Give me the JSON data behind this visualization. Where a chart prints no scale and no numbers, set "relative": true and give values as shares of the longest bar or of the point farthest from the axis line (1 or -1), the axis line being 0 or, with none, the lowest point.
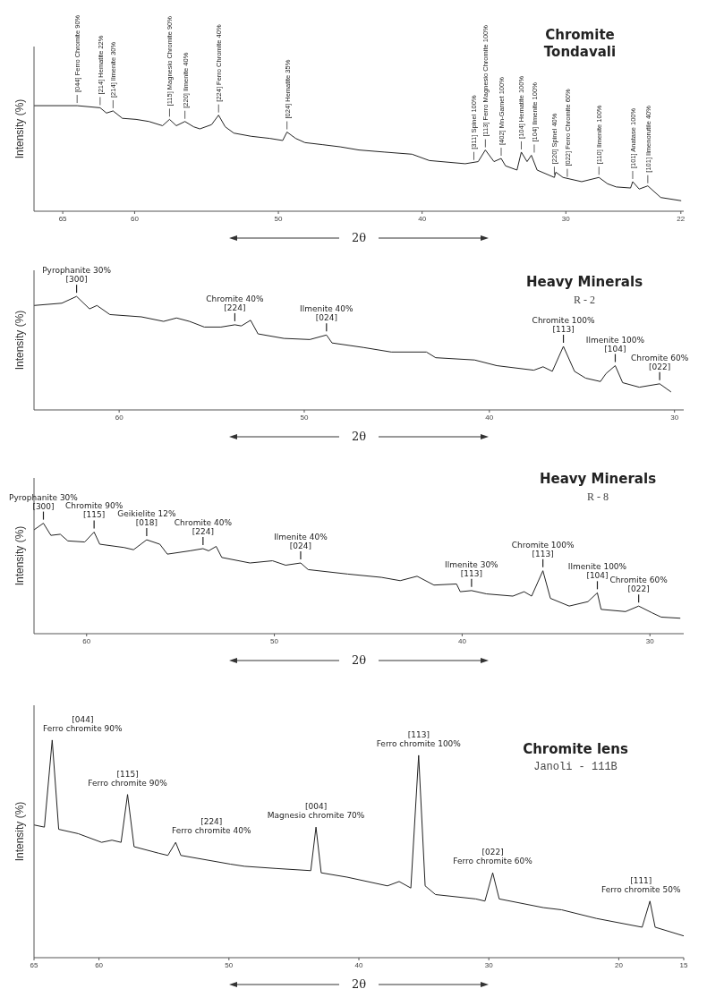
{
  "chart_data": [
    {
      "type": "line",
      "title": "Chromite Tondavali",
      "xlabel": "2θ",
      "ylabel": "Intensity (%)",
      "relative": true,
      "xlim": [
        67,
        21.8
      ],
      "xticks": [
        65,
        60,
        50,
        40,
        30,
        22
      ],
      "x": [
        67,
        64.0,
        62.4,
        61.96,
        61.5,
        60.85,
        59.9,
        59.0,
        58.06,
        57.57,
        57.1,
        56.5,
        55.9,
        55.46,
        54.65,
        54.16,
        53.7,
        53.1,
        51.9,
        50.6,
        49.7,
        49.4,
        48.8,
        48.15,
        46.9,
        45.7,
        44.4,
        42.6,
        40.7,
        39.5,
        37.0,
        36.1,
        35.6,
        35.0,
        34.5,
        34.2,
        33.4,
        33.1,
        32.7,
        32.4,
        32.0,
        30.8,
        30.7,
        30.2,
        28.9,
        27.7,
        27.1,
        26.5,
        25.5,
        25.35,
        24.9,
        24.3,
        23.4,
        22.0
      ],
      "series": [
        {
          "color": "#222222",
          "values": [
            1.0,
            1.0,
            0.98,
            0.93,
            0.95,
            0.88,
            0.87,
            0.85,
            0.81,
            0.87,
            0.81,
            0.85,
            0.8,
            0.78,
            0.82,
            0.91,
            0.8,
            0.74,
            0.71,
            0.69,
            0.67,
            0.75,
            0.69,
            0.65,
            0.63,
            0.61,
            0.58,
            0.56,
            0.54,
            0.48,
            0.45,
            0.47,
            0.58,
            0.47,
            0.5,
            0.43,
            0.39,
            0.56,
            0.47,
            0.53,
            0.39,
            0.32,
            0.37,
            0.32,
            0.28,
            0.32,
            0.26,
            0.23,
            0.22,
            0.28,
            0.21,
            0.24,
            0.13,
            0.1
          ]
        }
      ],
      "annotations": [
        {
          "text": "[044] Ferro Chromite 90%",
          "x": 64.0,
          "y": 1.0
        },
        {
          "text": "[214] Hematite 22%",
          "x": 62.4,
          "y": 0.98
        },
        {
          "text": "[214] Ilmenite 30%",
          "x": 61.5,
          "y": 0.95
        },
        {
          "text": "[115] Magnesio Chromite 90%",
          "x": 57.57,
          "y": 0.87
        },
        {
          "text": "[220] Ilmenite 40%",
          "x": 56.5,
          "y": 0.85
        },
        {
          "text": "[224] Ferro Chromite 40%",
          "x": 54.16,
          "y": 0.91
        },
        {
          "text": "[024] Hematite 35%",
          "x": 49.4,
          "y": 0.75
        },
        {
          "text": "[311] Spinel 100%",
          "x": 36.4,
          "y": 0.46
        },
        {
          "text": "[113] Ferro Magnesio Chromite 100%",
          "x": 35.6,
          "y": 0.58
        },
        {
          "text": "[402] Mn-Garnet 100%",
          "x": 34.5,
          "y": 0.5
        },
        {
          "text": "[104] Hematite 100%",
          "x": 33.1,
          "y": 0.56
        },
        {
          "text": "[104] Ilmenite 100%",
          "x": 32.2,
          "y": 0.53
        },
        {
          "text": "[220] Spinel 40%",
          "x": 30.8,
          "y": 0.32
        },
        {
          "text": "[022] Ferro Chromite 60%",
          "x": 29.9,
          "y": 0.3
        },
        {
          "text": "[110] Ilmenite 100%",
          "x": 27.7,
          "y": 0.32
        },
        {
          "text": "[101] Anatase 100%",
          "x": 25.35,
          "y": 0.28
        },
        {
          "text": "[101] Ilmenorutile 40%",
          "x": 24.3,
          "y": 0.24
        }
      ]
    },
    {
      "type": "line",
      "title": "Heavy Minerals",
      "subtitle": "R - 2",
      "xlabel": "2θ",
      "ylabel": "Intensity (%)",
      "relative": true,
      "xlim": [
        64.6,
        29.5
      ],
      "xticks": [
        60,
        50,
        40,
        30
      ],
      "x": [
        64.6,
        63.1,
        62.3,
        61.6,
        61.2,
        60.5,
        58.8,
        57.6,
        56.9,
        56.2,
        55.4,
        54.5,
        53.75,
        53.4,
        52.9,
        52.5,
        51.1,
        49.7,
        48.8,
        48.5,
        46.8,
        45.3,
        43.4,
        42.9,
        40.8,
        39.6,
        37.6,
        37.1,
        36.6,
        36.0,
        35.4,
        34.8,
        34.0,
        33.7,
        33.2,
        32.8,
        31.9,
        30.8,
        30.2
      ],
      "series": [
        {
          "color": "#222222",
          "values": [
            0.92,
            0.94,
            1.0,
            0.89,
            0.92,
            0.84,
            0.82,
            0.78,
            0.81,
            0.78,
            0.73,
            0.73,
            0.75,
            0.74,
            0.79,
            0.67,
            0.63,
            0.62,
            0.66,
            0.59,
            0.55,
            0.51,
            0.51,
            0.46,
            0.44,
            0.39,
            0.35,
            0.38,
            0.34,
            0.56,
            0.34,
            0.28,
            0.25,
            0.32,
            0.39,
            0.24,
            0.2,
            0.23,
            0.16
          ]
        }
      ],
      "annotations": [
        {
          "text": "Pyrophanite 30%\n[300]",
          "x": 62.3,
          "y": 1.0
        },
        {
          "text": "Chromite 40%\n[224]",
          "x": 53.75,
          "y": 0.75
        },
        {
          "text": "Ilmenite 40%\n[024]",
          "x": 48.8,
          "y": 0.66
        },
        {
          "text": "Chromite 100%\n[113]",
          "x": 36.0,
          "y": 0.56
        },
        {
          "text": "Ilmenite 100%\n[104]",
          "x": 33.2,
          "y": 0.39
        },
        {
          "text": "Chromite 60%\n[022]",
          "x": 30.8,
          "y": 0.23
        }
      ]
    },
    {
      "type": "line",
      "title": "Heavy Minerals",
      "subtitle": "R - 8",
      "xlabel": "2θ",
      "ylabel": "Intensity (%)",
      "relative": true,
      "xlim": [
        62.8,
        28.2
      ],
      "xticks": [
        60,
        50,
        40,
        30
      ],
      "x": [
        62.8,
        62.3,
        61.9,
        61.4,
        61.0,
        60.1,
        59.6,
        59.3,
        58.0,
        57.5,
        56.8,
        56.1,
        55.7,
        54.5,
        53.8,
        53.5,
        53.1,
        52.8,
        51.3,
        50.1,
        49.4,
        48.6,
        48.2,
        46.1,
        44.3,
        43.3,
        42.4,
        41.5,
        40.3,
        40.1,
        39.5,
        38.7,
        37.3,
        36.7,
        36.3,
        35.7,
        35.3,
        34.3,
        33.3,
        32.8,
        32.6,
        31.3,
        30.6,
        29.9,
        29.4,
        28.4
      ],
      "series": [
        {
          "color": "#222222",
          "values": [
            0.94,
            1.0,
            0.89,
            0.9,
            0.84,
            0.83,
            0.92,
            0.81,
            0.78,
            0.76,
            0.85,
            0.81,
            0.72,
            0.75,
            0.77,
            0.75,
            0.79,
            0.69,
            0.64,
            0.66,
            0.62,
            0.64,
            0.58,
            0.54,
            0.51,
            0.48,
            0.52,
            0.44,
            0.45,
            0.38,
            0.39,
            0.36,
            0.34,
            0.38,
            0.34,
            0.57,
            0.32,
            0.25,
            0.29,
            0.37,
            0.22,
            0.2,
            0.25,
            0.19,
            0.15,
            0.14
          ]
        }
      ],
      "annotations": [
        {
          "text": "Pyrophanite 30%\n[300]",
          "x": 62.3,
          "y": 1.0
        },
        {
          "text": "Chromite 90%\n[115]",
          "x": 59.6,
          "y": 0.92
        },
        {
          "text": "Geikielite 12%\n[018]",
          "x": 56.8,
          "y": 0.85
        },
        {
          "text": "Chromite 40%\n[224]",
          "x": 53.8,
          "y": 0.77
        },
        {
          "text": "Ilmenite 40%\n[024]",
          "x": 48.6,
          "y": 0.64
        },
        {
          "text": "Ilmenite 30%\n[113]",
          "x": 39.5,
          "y": 0.39
        },
        {
          "text": "Chromite 100%\n[113]",
          "x": 35.7,
          "y": 0.57
        },
        {
          "text": "Ilmenite 100%\n[104]",
          "x": 32.8,
          "y": 0.37
        },
        {
          "text": "Chromite 60%\n[022]",
          "x": 30.6,
          "y": 0.25
        }
      ]
    },
    {
      "type": "line",
      "title": "Chromite lens",
      "subtitle": "Janoli - 111B",
      "xlabel": "2θ",
      "ylabel": "Intensity (%)",
      "relative": true,
      "xlim": [
        65,
        15
      ],
      "xticks": [
        65,
        60,
        50,
        40,
        30,
        20,
        15
      ],
      "x": [
        65.0,
        64.2,
        63.6,
        63.1,
        61.6,
        59.8,
        59.0,
        58.3,
        57.8,
        57.3,
        55.4,
        54.7,
        54.1,
        53.7,
        49.9,
        48.8,
        46.4,
        43.7,
        43.3,
        42.9,
        40.9,
        37.8,
        36.9,
        36.0,
        35.4,
        34.9,
        34.1,
        31.0,
        30.3,
        29.7,
        29.2,
        25.8,
        24.4,
        21.7,
        18.2,
        17.6,
        17.2,
        15.0
      ],
      "series": [
        {
          "color": "#222222",
          "values": [
            0.61,
            0.6,
            1.0,
            0.59,
            0.57,
            0.53,
            0.54,
            0.53,
            0.75,
            0.51,
            0.48,
            0.47,
            0.53,
            0.47,
            0.43,
            0.42,
            0.41,
            0.4,
            0.6,
            0.39,
            0.37,
            0.33,
            0.35,
            0.32,
            0.93,
            0.33,
            0.29,
            0.27,
            0.26,
            0.39,
            0.27,
            0.23,
            0.22,
            0.18,
            0.14,
            0.26,
            0.14,
            0.1
          ]
        }
      ],
      "annotations": [
        {
          "text": "[044]\nFerro chromite 90%",
          "x": 63.6,
          "y": 1.0
        },
        {
          "text": "[115]\nFerro chromite 90%",
          "x": 57.8,
          "y": 0.75
        },
        {
          "text": "[224]\nFerro chromite 40%",
          "x": 54.1,
          "y": 0.53
        },
        {
          "text": "[004]\nMagnesio chromite 70%",
          "x": 43.3,
          "y": 0.6
        },
        {
          "text": "[113]\nFerro chromite 100%",
          "x": 35.4,
          "y": 0.93
        },
        {
          "text": "[022]\nFerro chromite 60%",
          "x": 29.7,
          "y": 0.39
        },
        {
          "text": "[111]\nFerro chromite 50%",
          "x": 17.6,
          "y": 0.26
        }
      ]
    }
  ]
}
